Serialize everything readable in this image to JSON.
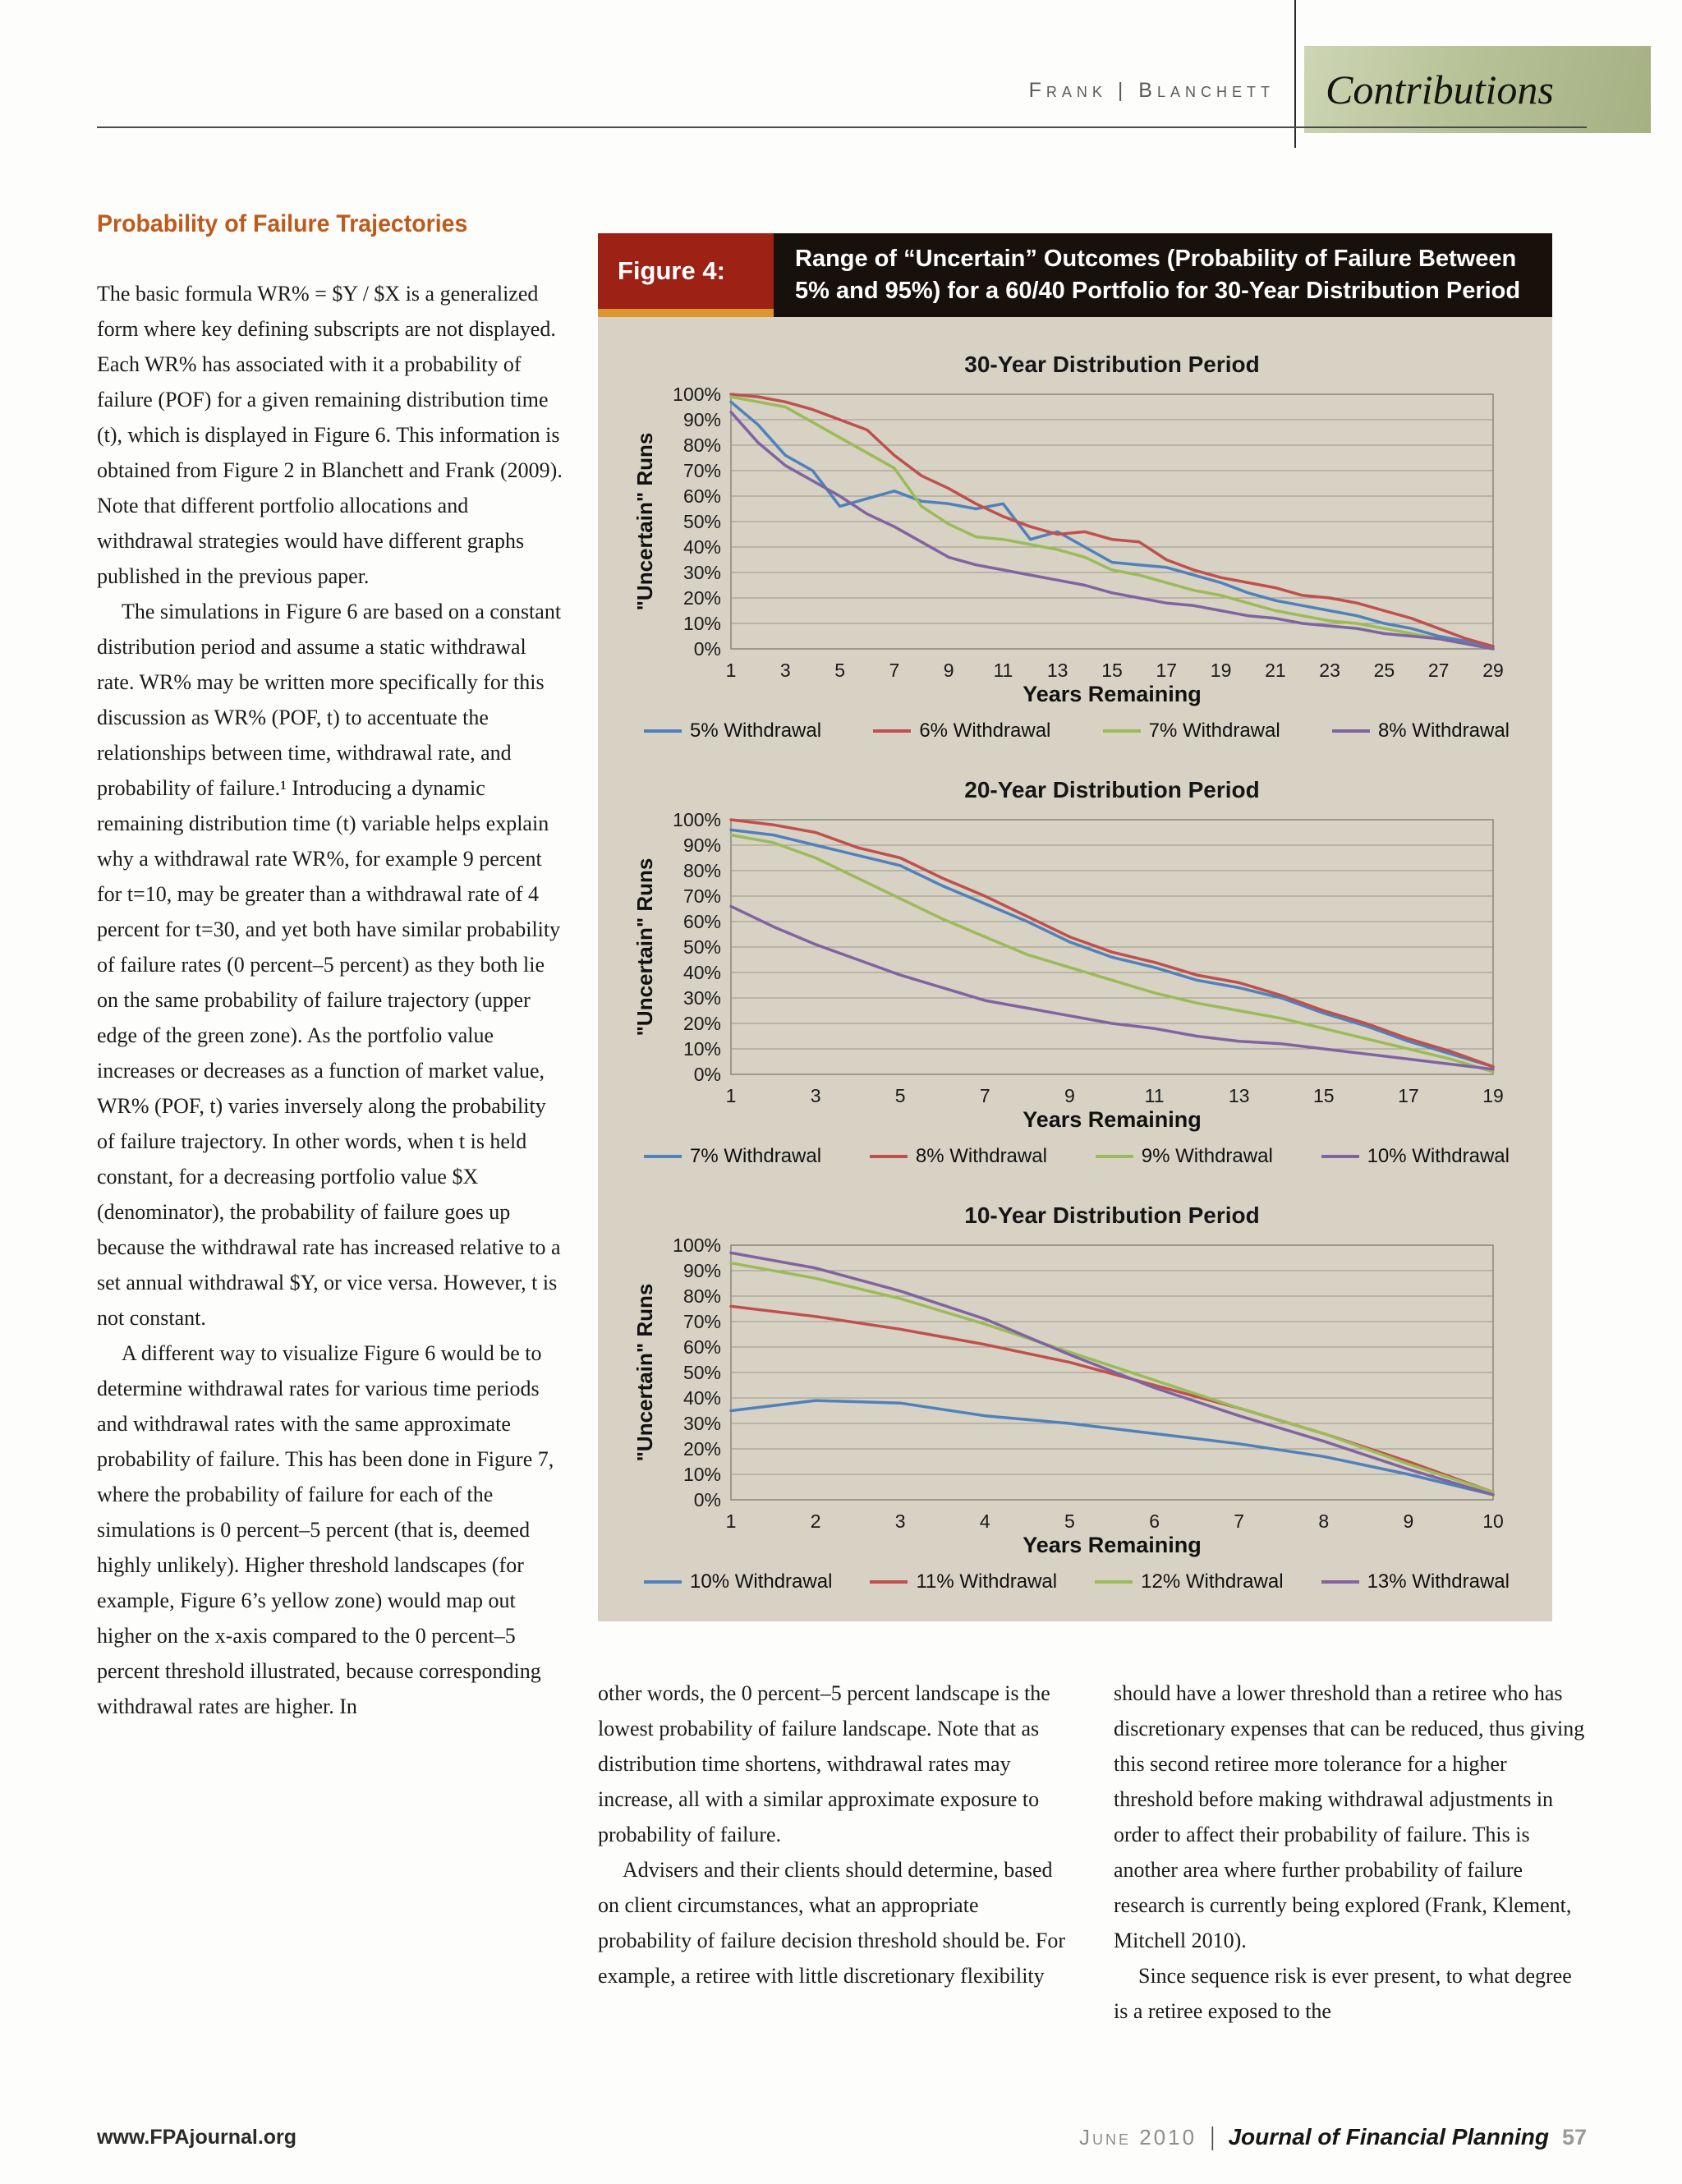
{
  "header": {
    "authors": "Frank | Blanchett",
    "section_label": "Contributions"
  },
  "article": {
    "heading": "Probability of Failure Trajectories",
    "left_column": [
      "The basic formula WR% = $Y / $X is a generalized form where key defining subscripts are not displayed. Each WR% has associated with it a probability of failure (POF) for a given remaining distribution time (t), which is displayed in Figure 6. This information is obtained from Figure 2 in Blanchett and Frank (2009). Note that different portfolio allocations and withdrawal strategies would have different graphs published in the previous paper.",
      "The simulations in Figure 6 are based on a constant distribution period and assume a static withdrawal rate. WR% may be written more specifically for this discussion as WR% (POF, t) to accentuate the relationships between time, withdrawal rate, and probability of failure.¹ Introducing a dynamic remaining distribution time (t) variable helps explain why a withdrawal rate WR%, for example 9 percent for t=10, may be greater than a withdrawal rate of 4 percent for t=30, and yet both have similar probability of failure rates (0 percent–5 percent) as they both lie on the same probability of failure trajectory (upper edge of the green zone). As the portfolio value increases or decreases as a function of market value, WR% (POF, t) varies inversely along the probability of failure trajectory. In other words, when t is held constant, for a decreasing portfolio value $X (denominator), the probability of failure goes up because the withdrawal rate has increased relative to a set annual withdrawal $Y, or vice versa. However, t is not constant.",
      "A different way to visualize Figure 6 would be to determine withdrawal rates for various time periods and withdrawal rates with the same approximate probability of failure. This has been done in Figure 7, where the probability of failure for each of the simulations is 0 percent–5 percent (that is, deemed highly unlikely). Higher threshold landscapes (for example, Figure 6’s yellow zone) would map out higher on the x-axis compared to the 0 percent–5 percent threshold illustrated, because corresponding withdrawal rates are higher. In"
    ],
    "middle_column": [
      "other words, the 0 percent–5 percent landscape is the lowest probability of failure landscape. Note that as distribution time shortens, withdrawal rates may increase, all with a similar approximate exposure to probability of failure.",
      "Advisers and their clients should determine, based on client circumstances, what an appropriate probability of failure decision threshold should be. For example, a retiree with little discretionary flexibility"
    ],
    "right_column": [
      "should have a lower threshold than a retiree who has discretionary expenses that can be reduced, thus giving this second retiree more tolerance for a higher threshold before making withdrawal adjustments in order to affect their probability of failure. This is another area where further probability of failure research is currently being explored (Frank, Klement, Mitchell 2010).",
      "Since sequence risk is ever present, to what degree is a retiree exposed to the"
    ]
  },
  "figure": {
    "label": "Figure 4:",
    "title": "Range of “Uncertain” Outcomes (Probability of Failure Between 5% and 95%) for a 60/40 Portfolio for 30-Year Distribution Period"
  },
  "footer": {
    "website": "www.FPAjournal.org",
    "issue": "June 2010",
    "journal": "Journal of Financial Planning",
    "page_number": "57"
  },
  "chart_data": [
    {
      "type": "line",
      "title": "30-Year Distribution Period",
      "xlabel": "Years Remaining",
      "ylabel": "\"Uncertain\" Runs",
      "ylim": [
        0,
        100
      ],
      "yticks": [
        0,
        10,
        20,
        30,
        40,
        50,
        60,
        70,
        80,
        90,
        100
      ],
      "ytick_suffix": "%",
      "x": [
        1,
        2,
        3,
        4,
        5,
        6,
        7,
        8,
        9,
        10,
        11,
        12,
        13,
        14,
        15,
        16,
        17,
        18,
        19,
        20,
        21,
        22,
        23,
        24,
        25,
        26,
        27,
        28,
        29
      ],
      "xticks": [
        1,
        3,
        5,
        7,
        9,
        11,
        13,
        15,
        17,
        19,
        21,
        23,
        25,
        27,
        29
      ],
      "grid": true,
      "legend_position": "bottom",
      "series": [
        {
          "name": "5% Withdrawal",
          "color": "#4f81bd",
          "values": [
            97,
            88,
            76,
            70,
            56,
            59,
            62,
            58,
            57,
            55,
            57,
            43,
            46,
            40,
            34,
            33,
            32,
            29,
            26,
            22,
            19,
            17,
            15,
            13,
            10,
            8,
            5,
            3,
            1
          ]
        },
        {
          "name": "6% Withdrawal",
          "color": "#c0504d",
          "values": [
            100,
            99,
            97,
            94,
            90,
            86,
            76,
            68,
            63,
            57,
            52,
            48,
            45,
            46,
            43,
            42,
            35,
            31,
            28,
            26,
            24,
            21,
            20,
            18,
            15,
            12,
            8,
            4,
            1
          ]
        },
        {
          "name": "7% Withdrawal",
          "color": "#9bbb59",
          "values": [
            99,
            97,
            95,
            89,
            83,
            77,
            71,
            56,
            49,
            44,
            43,
            41,
            39,
            36,
            31,
            29,
            26,
            23,
            21,
            18,
            15,
            13,
            11,
            10,
            8,
            6,
            4,
            2,
            0
          ]
        },
        {
          "name": "8% Withdrawal",
          "color": "#8064a2",
          "values": [
            93,
            81,
            72,
            66,
            60,
            53,
            48,
            42,
            36,
            33,
            31,
            29,
            27,
            25,
            22,
            20,
            18,
            17,
            15,
            13,
            12,
            10,
            9,
            8,
            6,
            5,
            4,
            2,
            0
          ]
        }
      ]
    },
    {
      "type": "line",
      "title": "20-Year Distribution Period",
      "xlabel": "Years Remaining",
      "ylabel": "\"Uncertain\" Runs",
      "ylim": [
        0,
        100
      ],
      "yticks": [
        0,
        10,
        20,
        30,
        40,
        50,
        60,
        70,
        80,
        90,
        100
      ],
      "ytick_suffix": "%",
      "x": [
        1,
        2,
        3,
        4,
        5,
        6,
        7,
        8,
        9,
        10,
        11,
        12,
        13,
        14,
        15,
        16,
        17,
        18,
        19
      ],
      "xticks": [
        1,
        3,
        5,
        7,
        9,
        11,
        13,
        15,
        17,
        19
      ],
      "grid": true,
      "legend_position": "bottom",
      "series": [
        {
          "name": "7% Withdrawal",
          "color": "#4f81bd",
          "values": [
            96,
            94,
            90,
            86,
            82,
            74,
            67,
            60,
            52,
            46,
            42,
            37,
            34,
            30,
            24,
            19,
            13,
            8,
            3
          ]
        },
        {
          "name": "8% Withdrawal",
          "color": "#c0504d",
          "values": [
            100,
            98,
            95,
            89,
            85,
            77,
            70,
            62,
            54,
            48,
            44,
            39,
            36,
            31,
            25,
            20,
            14,
            9,
            3
          ]
        },
        {
          "name": "9% Withdrawal",
          "color": "#9bbb59",
          "values": [
            94,
            91,
            85,
            77,
            69,
            61,
            54,
            47,
            42,
            37,
            32,
            28,
            25,
            22,
            18,
            14,
            10,
            6,
            1
          ]
        },
        {
          "name": "10% Withdrawal",
          "color": "#8064a2",
          "values": [
            66,
            58,
            51,
            45,
            39,
            34,
            29,
            26,
            23,
            20,
            18,
            15,
            13,
            12,
            10,
            8,
            6,
            4,
            2
          ]
        }
      ]
    },
    {
      "type": "line",
      "title": "10-Year Distribution Period",
      "xlabel": "Years Remaining",
      "ylabel": "\"Uncertain\" Runs",
      "ylim": [
        0,
        100
      ],
      "yticks": [
        0,
        10,
        20,
        30,
        40,
        50,
        60,
        70,
        80,
        90,
        100
      ],
      "ytick_suffix": "%",
      "x": [
        1,
        2,
        3,
        4,
        5,
        6,
        7,
        8,
        9,
        10
      ],
      "xticks": [
        1,
        2,
        3,
        4,
        5,
        6,
        7,
        8,
        9,
        10
      ],
      "grid": true,
      "legend_position": "bottom",
      "series": [
        {
          "name": "10% Withdrawal",
          "color": "#4f81bd",
          "values": [
            35,
            39,
            38,
            33,
            30,
            26,
            22,
            17,
            10,
            2
          ]
        },
        {
          "name": "11% Withdrawal",
          "color": "#c0504d",
          "values": [
            76,
            72,
            67,
            61,
            54,
            45,
            36,
            26,
            15,
            3
          ]
        },
        {
          "name": "12% Withdrawal",
          "color": "#9bbb59",
          "values": [
            93,
            87,
            79,
            69,
            58,
            47,
            36,
            26,
            14,
            3
          ]
        },
        {
          "name": "13% Withdrawal",
          "color": "#8064a2",
          "values": [
            97,
            91,
            82,
            71,
            57,
            44,
            33,
            23,
            12,
            2
          ]
        }
      ]
    }
  ]
}
